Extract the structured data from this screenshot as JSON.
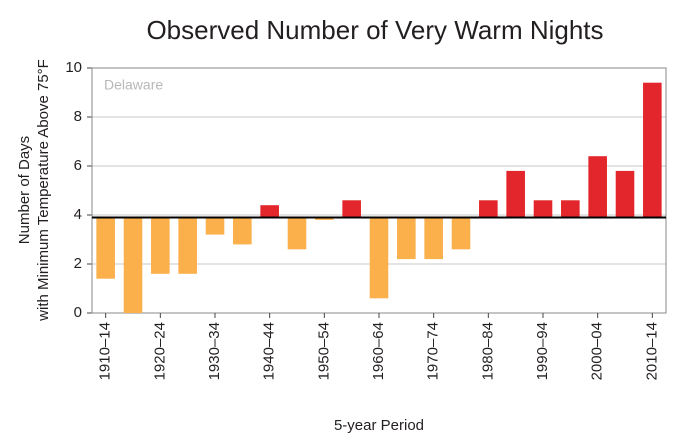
{
  "chart_data": {
    "type": "bar",
    "title": "Observed Number of Very Warm Nights",
    "annotation": "Delaware",
    "xlabel": "5-year Period",
    "ylabel": [
      "Number of Days",
      "with Minimum Temperature Above 75°F"
    ],
    "categories": [
      "1910–14",
      null,
      "1920–24",
      null,
      "1930–34",
      null,
      "1940–44",
      null,
      "1950–54",
      null,
      "1960–64",
      null,
      "1970–74",
      null,
      "1980–84",
      null,
      "1990–94",
      null,
      "2000–04",
      null,
      "2010–14"
    ],
    "values": [
      1.4,
      0.0,
      1.6,
      1.6,
      3.2,
      2.8,
      4.4,
      2.6,
      3.8,
      4.6,
      0.6,
      2.2,
      2.2,
      2.6,
      4.6,
      5.8,
      4.6,
      4.6,
      6.4,
      5.8,
      9.4
    ],
    "baseline": 3.9,
    "above_color": "#e3262b",
    "below_color": "#fbb04b",
    "ylim": [
      0,
      10
    ],
    "yticks": [
      0,
      2,
      4,
      6,
      8,
      10
    ],
    "grid": true
  }
}
